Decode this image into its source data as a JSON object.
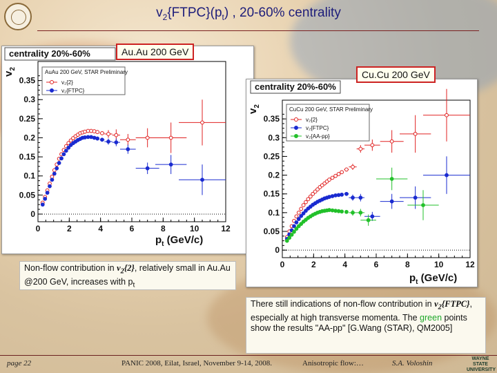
{
  "slide": {
    "title_main": "v",
    "title_sub": "2",
    "title_tail": "{FTPC}(p",
    "title_sub2": "t",
    "title_rest": ") , 20-60% centrality",
    "tag_auau": "Au.Au 200 GeV",
    "tag_cucu": "Cu.Cu 200 GeV",
    "note_auau_pre": "Non-flow contribution in ",
    "note_auau_v": "v",
    "note_auau_vsub": "2",
    "note_auau_vbrace": "{2}",
    "note_auau_post": ", relatively small in Au.Au @200 GeV, increases with p",
    "note_auau_psub": "t",
    "note_cucu_1": "There still indications of non-flow contribution in ",
    "note_cucu_v": "v",
    "note_cucu_vsub": "2",
    "note_cucu_vbrace": "{FTPC}",
    "note_cucu_2": ", especially at high transverse momenta. The ",
    "note_cucu_green": "green",
    "note_cucu_3": " points show the results \"AA-pp\" [G.Wang (STAR), QM2005]",
    "footer_page": "page 22",
    "footer_conf": "PANIC 2008, Eilat, Israel, November 9-14, 2008.",
    "footer_topic": "Anisotropic flow:…",
    "footer_author": "S.A. Voloshin",
    "footer_logo": "WAYNE STATE UNIVERSITY",
    "colors": {
      "title": "#1d1d7a",
      "red": "#e02020",
      "blue": "#1a2bd0",
      "green": "#22c02a"
    }
  },
  "chart_data": [
    {
      "type": "scatter",
      "panel_label": "centrality 20%-60%",
      "legend_title": "AuAu 200 GeV, STAR Preliminary",
      "xlabel": "p",
      "xlabel_sub": "t",
      "xlabel_unit": " (GeV/c)",
      "ylabel": "v",
      "ylabel_sub": "2",
      "xlim": [
        0,
        12
      ],
      "ylim": [
        -0.02,
        0.4
      ],
      "xticks": [
        "0",
        "2",
        "4",
        "6",
        "8",
        "10",
        "12"
      ],
      "yticks": [
        "0",
        "0.05",
        "0.1",
        "0.15",
        "0.2",
        "0.25",
        "0.3",
        "0.35"
      ],
      "series": [
        {
          "name": "v₂{2}",
          "color": "#e02020",
          "marker": "open-circle",
          "x": [
            0.3,
            0.45,
            0.6,
            0.75,
            0.9,
            1.05,
            1.2,
            1.35,
            1.5,
            1.65,
            1.8,
            1.95,
            2.1,
            2.25,
            2.4,
            2.55,
            2.7,
            2.85,
            3.0,
            3.2,
            3.4,
            3.6,
            3.8,
            4.1,
            4.5,
            5.0,
            5.75,
            7.0,
            8.5,
            10.5
          ],
          "y": [
            0.03,
            0.045,
            0.062,
            0.08,
            0.098,
            0.115,
            0.13,
            0.145,
            0.157,
            0.168,
            0.178,
            0.186,
            0.193,
            0.199,
            0.204,
            0.208,
            0.212,
            0.214,
            0.216,
            0.218,
            0.218,
            0.217,
            0.215,
            0.212,
            0.21,
            0.207,
            0.195,
            0.2,
            0.2,
            0.24
          ],
          "xerr": [
            0,
            0,
            0,
            0,
            0,
            0,
            0,
            0,
            0,
            0,
            0,
            0,
            0,
            0,
            0,
            0,
            0,
            0,
            0,
            0,
            0,
            0,
            0,
            0.15,
            0.25,
            0.25,
            0.5,
            0.75,
            1.0,
            1.5
          ],
          "yerr": [
            0,
            0,
            0,
            0,
            0,
            0,
            0,
            0,
            0,
            0,
            0,
            0,
            0,
            0,
            0,
            0,
            0,
            0,
            0,
            0,
            0,
            0,
            0,
            0.005,
            0.01,
            0.015,
            0.015,
            0.025,
            0.04,
            0.06
          ]
        },
        {
          "name": "v₂{FTPC}",
          "color": "#1a2bd0",
          "marker": "filled-circle",
          "x": [
            0.3,
            0.45,
            0.6,
            0.75,
            0.9,
            1.05,
            1.2,
            1.35,
            1.5,
            1.65,
            1.8,
            1.95,
            2.1,
            2.25,
            2.4,
            2.55,
            2.7,
            2.85,
            3.0,
            3.2,
            3.4,
            3.6,
            3.8,
            4.1,
            4.5,
            5.0,
            5.75,
            7.0,
            8.5,
            10.5
          ],
          "y": [
            0.025,
            0.04,
            0.056,
            0.073,
            0.09,
            0.106,
            0.12,
            0.134,
            0.146,
            0.157,
            0.166,
            0.174,
            0.181,
            0.186,
            0.19,
            0.194,
            0.197,
            0.2,
            0.201,
            0.202,
            0.202,
            0.2,
            0.198,
            0.195,
            0.19,
            0.188,
            0.17,
            0.12,
            0.13,
            0.09
          ],
          "xerr": [
            0,
            0,
            0,
            0,
            0,
            0,
            0,
            0,
            0,
            0,
            0,
            0,
            0,
            0,
            0,
            0,
            0,
            0,
            0,
            0,
            0,
            0,
            0,
            0.15,
            0.25,
            0.25,
            0.5,
            0.75,
            1.0,
            1.5
          ],
          "yerr": [
            0,
            0,
            0,
            0,
            0,
            0,
            0,
            0,
            0,
            0,
            0,
            0,
            0,
            0,
            0,
            0,
            0,
            0,
            0,
            0,
            0,
            0,
            0,
            0.005,
            0.008,
            0.01,
            0.012,
            0.015,
            0.025,
            0.04
          ]
        }
      ]
    },
    {
      "type": "scatter",
      "panel_label": "centrality 20%-60%",
      "legend_title": "CuCu 200 GeV, STAR Preliminary",
      "xlabel": "p",
      "xlabel_sub": "t",
      "xlabel_unit": " (GeV/c)",
      "ylabel": "v",
      "ylabel_sub": "2",
      "xlim": [
        0,
        12
      ],
      "ylim": [
        -0.02,
        0.4
      ],
      "xticks": [
        "0",
        "2",
        "4",
        "6",
        "8",
        "10",
        "12"
      ],
      "yticks": [
        "0",
        "0.05",
        "0.1",
        "0.15",
        "0.2",
        "0.25",
        "0.3",
        "0.35"
      ],
      "series": [
        {
          "name": "v₂{2}",
          "color": "#e02020",
          "marker": "open-circle",
          "x": [
            0.3,
            0.45,
            0.6,
            0.75,
            0.9,
            1.05,
            1.2,
            1.35,
            1.5,
            1.65,
            1.8,
            1.95,
            2.1,
            2.25,
            2.4,
            2.55,
            2.7,
            2.85,
            3.0,
            3.2,
            3.4,
            3.6,
            3.8,
            4.1,
            4.5,
            5.0,
            5.75,
            7.0,
            8.5,
            10.5
          ],
          "y": [
            0.035,
            0.05,
            0.064,
            0.078,
            0.09,
            0.1,
            0.11,
            0.12,
            0.128,
            0.136,
            0.143,
            0.15,
            0.156,
            0.162,
            0.168,
            0.173,
            0.178,
            0.183,
            0.188,
            0.193,
            0.198,
            0.203,
            0.208,
            0.215,
            0.222,
            0.27,
            0.28,
            0.29,
            0.31,
            0.36
          ],
          "xerr": [
            0,
            0,
            0,
            0,
            0,
            0,
            0,
            0,
            0,
            0,
            0,
            0,
            0,
            0,
            0,
            0,
            0,
            0,
            0,
            0,
            0,
            0,
            0,
            0.15,
            0.25,
            0.25,
            0.5,
            0.75,
            1.0,
            1.5
          ],
          "yerr": [
            0,
            0,
            0,
            0,
            0,
            0,
            0,
            0,
            0,
            0,
            0,
            0,
            0,
            0,
            0,
            0,
            0,
            0,
            0,
            0,
            0,
            0,
            0,
            0.005,
            0.008,
            0.01,
            0.015,
            0.03,
            0.05,
            0.07
          ]
        },
        {
          "name": "v₂{FTPC}",
          "color": "#1a2bd0",
          "marker": "filled-circle",
          "x": [
            0.3,
            0.45,
            0.6,
            0.75,
            0.9,
            1.05,
            1.2,
            1.35,
            1.5,
            1.65,
            1.8,
            1.95,
            2.1,
            2.25,
            2.4,
            2.55,
            2.7,
            2.85,
            3.0,
            3.2,
            3.4,
            3.6,
            3.8,
            4.1,
            4.5,
            5.0,
            5.75,
            7.0,
            8.5,
            10.5
          ],
          "y": [
            0.03,
            0.042,
            0.053,
            0.064,
            0.074,
            0.083,
            0.091,
            0.098,
            0.105,
            0.111,
            0.116,
            0.121,
            0.125,
            0.129,
            0.132,
            0.135,
            0.138,
            0.14,
            0.142,
            0.144,
            0.146,
            0.147,
            0.148,
            0.15,
            0.14,
            0.14,
            0.09,
            0.13,
            0.14,
            0.2
          ],
          "xerr": [
            0,
            0,
            0,
            0,
            0,
            0,
            0,
            0,
            0,
            0,
            0,
            0,
            0,
            0,
            0,
            0,
            0,
            0,
            0,
            0,
            0,
            0,
            0,
            0.15,
            0.25,
            0.25,
            0.5,
            0.75,
            1.0,
            1.5
          ],
          "yerr": [
            0,
            0,
            0,
            0,
            0,
            0,
            0,
            0,
            0,
            0,
            0,
            0,
            0,
            0,
            0,
            0,
            0,
            0,
            0,
            0,
            0,
            0,
            0,
            0.005,
            0.008,
            0.01,
            0.012,
            0.02,
            0.03,
            0.05
          ]
        },
        {
          "name": "v₂{AA-pp}",
          "color": "#22c02a",
          "marker": "filled-circle",
          "x": [
            0.3,
            0.45,
            0.6,
            0.75,
            0.9,
            1.05,
            1.2,
            1.35,
            1.5,
            1.65,
            1.8,
            1.95,
            2.1,
            2.25,
            2.4,
            2.55,
            2.7,
            2.85,
            3.0,
            3.2,
            3.4,
            3.6,
            3.8,
            4.1,
            4.5,
            5.0,
            5.5,
            7.0,
            9.0
          ],
          "y": [
            0.025,
            0.033,
            0.041,
            0.049,
            0.057,
            0.064,
            0.07,
            0.076,
            0.081,
            0.086,
            0.09,
            0.094,
            0.097,
            0.1,
            0.102,
            0.104,
            0.105,
            0.106,
            0.107,
            0.106,
            0.105,
            0.104,
            0.103,
            0.102,
            0.1,
            0.1,
            0.08,
            0.19,
            0.12
          ],
          "xerr": [
            0,
            0,
            0,
            0,
            0,
            0,
            0,
            0,
            0,
            0,
            0,
            0,
            0,
            0,
            0,
            0,
            0,
            0,
            0,
            0,
            0,
            0,
            0,
            0,
            0.25,
            0.25,
            0.5,
            1.0,
            1.0
          ],
          "yerr": [
            0,
            0,
            0,
            0,
            0,
            0,
            0,
            0,
            0,
            0,
            0,
            0,
            0,
            0,
            0,
            0,
            0,
            0,
            0,
            0,
            0,
            0,
            0,
            0,
            0.008,
            0.01,
            0.015,
            0.03,
            0.04
          ]
        }
      ]
    }
  ]
}
